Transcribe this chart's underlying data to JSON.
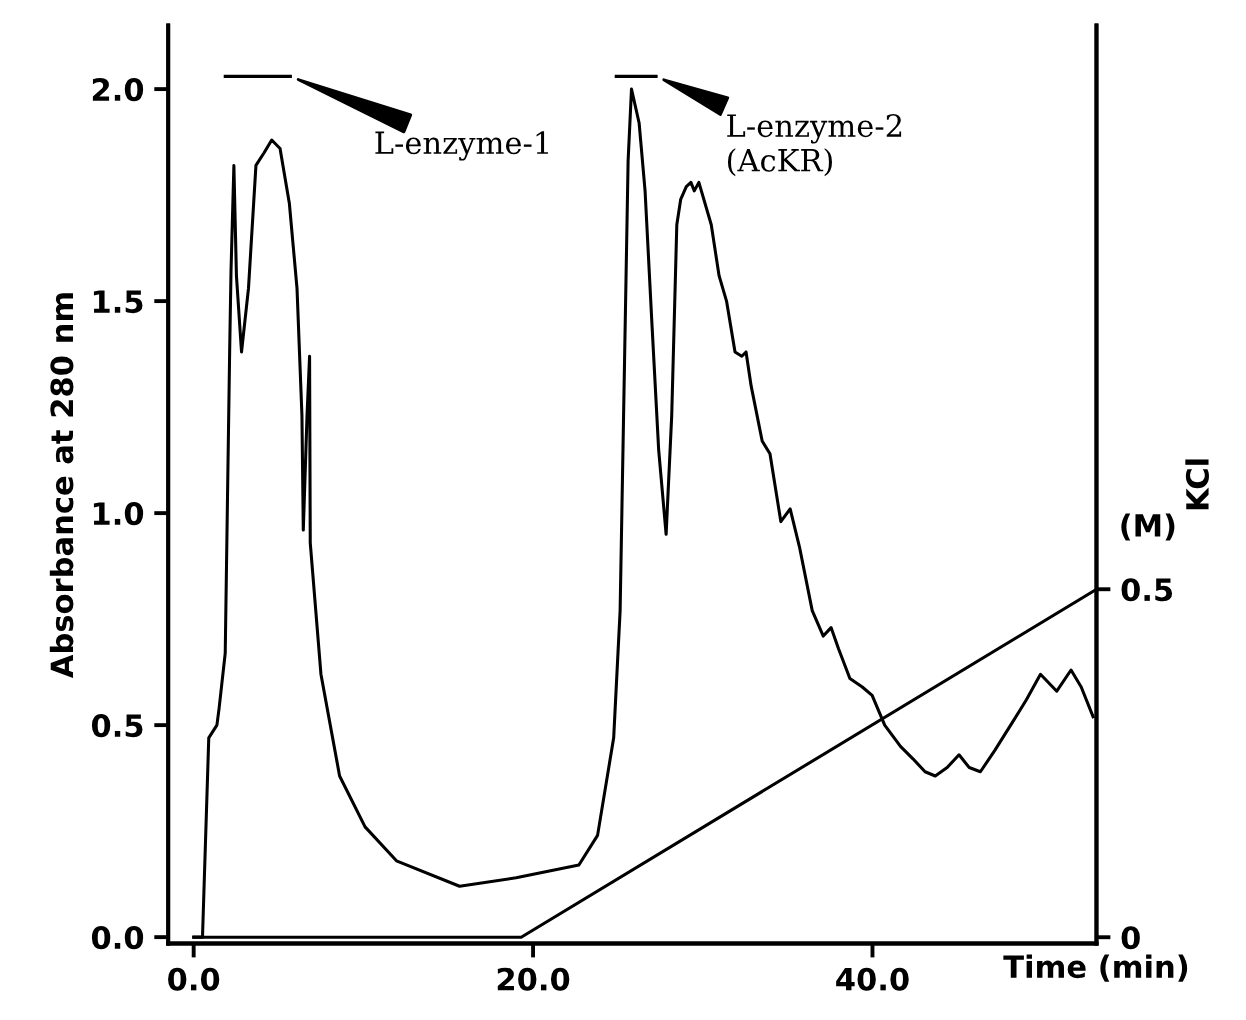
{
  "chart_data": {
    "type": "line",
    "xlabel": "Time (min)",
    "ylabel": "Absorbance at 280 nm",
    "y2label": "KCl",
    "xlim": [
      -1.5,
      53.2
    ],
    "ylim": [
      -0.015,
      2.15
    ],
    "y2lim": [
      -0.009,
      1.31
    ],
    "xticks": [
      {
        "value": 0,
        "label": "0.0"
      },
      {
        "value": 20,
        "label": "20.0"
      },
      {
        "value": 40,
        "label": "40.0"
      }
    ],
    "yticks": [
      {
        "value": 0,
        "label": "0.0"
      },
      {
        "value": 0.5,
        "label": "0.5"
      },
      {
        "value": 1,
        "label": "1.0"
      },
      {
        "value": 1.5,
        "label": "1.5"
      },
      {
        "value": 2,
        "label": "2.0"
      }
    ],
    "y2ticks": [
      0,
      0.5
    ],
    "grid": false,
    "marker": "none",
    "line_style": "solid",
    "series": [
      {
        "color": "#000000",
        "x": [
          0.02,
          0.52,
          0.89,
          1.37,
          1.5,
          1.86,
          2.12,
          2.2,
          2.37,
          2.52,
          2.82,
          3.23,
          3.67,
          4.15,
          4.6,
          5.09,
          5.64,
          6.09,
          6.38,
          6.46,
          6.68,
          6.83,
          6.87,
          7.5,
          8.6,
          10.1,
          11.95,
          15.67,
          19.0,
          22.7,
          23.8,
          24.75,
          25.13,
          25.4,
          25.6,
          25.8,
          26.25,
          26.6,
          27.0,
          27.4,
          27.84,
          28.17,
          28.47,
          28.7,
          29.03,
          29.3,
          29.5,
          29.77,
          30.5,
          30.96,
          31.4,
          31.9,
          32.3,
          32.55,
          32.85,
          33.5,
          33.96,
          34.6,
          35.15,
          35.7,
          36.45,
          37.1,
          37.56,
          38.0,
          38.67,
          39.4,
          39.98,
          40.72,
          41.65,
          42.4,
          43.1,
          43.7,
          44.4,
          45.1,
          45.7,
          46.36,
          47.2,
          48.3,
          49.07,
          49.9,
          50.86,
          51.7,
          52.3,
          53.0
        ],
        "values": [
          0,
          0,
          0.47,
          0.5,
          0.54,
          0.67,
          1.38,
          1.57,
          1.82,
          1.56,
          1.38,
          1.53,
          1.82,
          1.85,
          1.88,
          1.86,
          1.73,
          1.53,
          1.23,
          0.96,
          1.23,
          1.37,
          0.93,
          0.62,
          0.38,
          0.26,
          0.18,
          0.12,
          0.14,
          0.17,
          0.24,
          0.47,
          0.77,
          1.38,
          1.83,
          2.0,
          1.92,
          1.76,
          1.45,
          1.15,
          0.95,
          1.23,
          1.68,
          1.74,
          1.77,
          1.78,
          1.76,
          1.78,
          1.68,
          1.56,
          1.5,
          1.38,
          1.37,
          1.38,
          1.3,
          1.17,
          1.14,
          0.98,
          1.01,
          0.92,
          0.77,
          0.71,
          0.73,
          0.68,
          0.61,
          0.59,
          0.57,
          0.5,
          0.45,
          0.42,
          0.39,
          0.38,
          0.4,
          0.43,
          0.4,
          0.39,
          0.44,
          0.51,
          0.56,
          0.62,
          0.58,
          0.63,
          0.59,
          0.52
        ]
      },
      {
        "color": "#000000",
        "axis": "y2",
        "x": [
          0,
          19.3,
          53.2
        ],
        "values": [
          0,
          0,
          0.5
        ]
      },
      {
        "color": "#000000",
        "x": [
          1.86,
          5.7
        ],
        "values": [
          2.03,
          2.03
        ]
      },
      {
        "color": "#000000",
        "x": [
          24.9,
          27.25
        ],
        "values": [
          2.03,
          2.03
        ]
      }
    ],
    "annotations": [
      {
        "text": "L-enzyme-1",
        "x": 5.7,
        "y": 2.03
      },
      {
        "text": "L-enzyme-2\n(AcKR)",
        "x": 27.25,
        "y": 2.03
      },
      "(M)"
    ]
  }
}
